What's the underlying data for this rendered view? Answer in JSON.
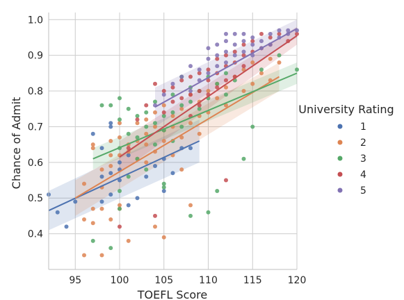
{
  "chart_data": {
    "type": "scatter",
    "xlabel": "TOEFL Score",
    "ylabel": "Chance of Admit",
    "xlim": [
      92,
      120
    ],
    "ylim": [
      0.3,
      1.02
    ],
    "xticks": [
      "95",
      "100",
      "105",
      "110",
      "115",
      "120"
    ],
    "yticks": [
      "0.4",
      "0.5",
      "0.6",
      "0.7",
      "0.8",
      "0.9",
      "1.0"
    ],
    "grid": true,
    "legend": {
      "title": "University Rating",
      "placement": "right"
    },
    "series": [
      {
        "name": "1",
        "color": "#4c72b0",
        "fit": {
          "x": [
            92,
            109
          ],
          "y": [
            0.465,
            0.66
          ],
          "band_lo": [
            0.41,
            0.6
          ],
          "band_hi": [
            0.52,
            0.72
          ]
        },
        "points": [
          [
            92,
            0.51
          ],
          [
            93,
            0.46
          ],
          [
            94,
            0.42
          ],
          [
            95,
            0.49
          ],
          [
            97,
            0.68
          ],
          [
            98,
            0.64
          ],
          [
            98,
            0.56
          ],
          [
            98,
            0.49
          ],
          [
            99,
            0.71
          ],
          [
            99,
            0.7
          ],
          [
            99,
            0.57
          ],
          [
            99,
            0.51
          ],
          [
            100,
            0.6
          ],
          [
            100,
            0.55
          ],
          [
            100,
            0.58
          ],
          [
            101,
            0.62
          ],
          [
            101,
            0.48
          ],
          [
            102,
            0.5
          ],
          [
            103,
            0.56
          ],
          [
            104,
            0.59
          ],
          [
            105,
            0.52
          ],
          [
            105,
            0.61
          ],
          [
            106,
            0.57
          ],
          [
            107,
            0.64
          ],
          [
            108,
            0.64
          ]
        ]
      },
      {
        "name": "2",
        "color": "#dd8452",
        "fit": {
          "x": [
            95,
            118
          ],
          "y": [
            0.5,
            0.84
          ],
          "band_lo": [
            0.45,
            0.8
          ],
          "band_hi": [
            0.55,
            0.88
          ]
        },
        "points": [
          [
            96,
            0.54
          ],
          [
            96,
            0.44
          ],
          [
            96,
            0.34
          ],
          [
            97,
            0.65
          ],
          [
            97,
            0.64
          ],
          [
            97,
            0.47
          ],
          [
            97,
            0.43
          ],
          [
            98,
            0.58
          ],
          [
            98,
            0.53
          ],
          [
            98,
            0.47
          ],
          [
            98,
            0.34
          ],
          [
            99,
            0.66
          ],
          [
            99,
            0.62
          ],
          [
            99,
            0.59
          ],
          [
            99,
            0.44
          ],
          [
            100,
            0.71
          ],
          [
            100,
            0.67
          ],
          [
            100,
            0.62
          ],
          [
            100,
            0.48
          ],
          [
            100,
            0.47
          ],
          [
            101,
            0.65
          ],
          [
            101,
            0.63
          ],
          [
            101,
            0.38
          ],
          [
            102,
            0.71
          ],
          [
            102,
            0.66
          ],
          [
            102,
            0.61
          ],
          [
            103,
            0.72
          ],
          [
            103,
            0.68
          ],
          [
            103,
            0.65
          ],
          [
            103,
            0.6
          ],
          [
            104,
            0.74
          ],
          [
            104,
            0.7
          ],
          [
            104,
            0.63
          ],
          [
            104,
            0.42
          ],
          [
            105,
            0.76
          ],
          [
            105,
            0.69
          ],
          [
            105,
            0.66
          ],
          [
            105,
            0.39
          ],
          [
            106,
            0.73
          ],
          [
            106,
            0.7
          ],
          [
            106,
            0.62
          ],
          [
            107,
            0.75
          ],
          [
            107,
            0.67
          ],
          [
            107,
            0.58
          ],
          [
            108,
            0.79
          ],
          [
            108,
            0.71
          ],
          [
            108,
            0.48
          ],
          [
            109,
            0.77
          ],
          [
            109,
            0.73
          ],
          [
            109,
            0.68
          ],
          [
            110,
            0.8
          ],
          [
            110,
            0.74
          ],
          [
            111,
            0.82
          ],
          [
            111,
            0.78
          ],
          [
            112,
            0.81
          ],
          [
            112,
            0.76
          ],
          [
            113,
            0.84
          ],
          [
            114,
            0.86
          ],
          [
            114,
            0.8
          ],
          [
            115,
            0.88
          ],
          [
            115,
            0.82
          ],
          [
            116,
            0.85
          ],
          [
            117,
            0.89
          ],
          [
            117,
            0.83
          ],
          [
            118,
            0.88
          ]
        ]
      },
      {
        "name": "3",
        "color": "#55a868",
        "fit": {
          "x": [
            97,
            120
          ],
          "y": [
            0.61,
            0.85
          ],
          "band_lo": [
            0.58,
            0.82
          ],
          "band_hi": [
            0.64,
            0.88
          ]
        },
        "points": [
          [
            97,
            0.38
          ],
          [
            98,
            0.76
          ],
          [
            99,
            0.76
          ],
          [
            99,
            0.36
          ],
          [
            100,
            0.78
          ],
          [
            100,
            0.72
          ],
          [
            100,
            0.64
          ],
          [
            100,
            0.52
          ],
          [
            100,
            0.47
          ],
          [
            101,
            0.75
          ],
          [
            101,
            0.68
          ],
          [
            101,
            0.56
          ],
          [
            102,
            0.73
          ],
          [
            102,
            0.67
          ],
          [
            102,
            0.61
          ],
          [
            103,
            0.74
          ],
          [
            103,
            0.7
          ],
          [
            103,
            0.58
          ],
          [
            104,
            0.77
          ],
          [
            104,
            0.71
          ],
          [
            104,
            0.65
          ],
          [
            105,
            0.73
          ],
          [
            105,
            0.69
          ],
          [
            105,
            0.54
          ],
          [
            105,
            0.53
          ],
          [
            106,
            0.79
          ],
          [
            106,
            0.74
          ],
          [
            106,
            0.66
          ],
          [
            107,
            0.84
          ],
          [
            107,
            0.76
          ],
          [
            107,
            0.7
          ],
          [
            108,
            0.81
          ],
          [
            108,
            0.77
          ],
          [
            108,
            0.45
          ],
          [
            109,
            0.8
          ],
          [
            109,
            0.75
          ],
          [
            110,
            0.84
          ],
          [
            110,
            0.78
          ],
          [
            110,
            0.46
          ],
          [
            111,
            0.82
          ],
          [
            111,
            0.52
          ],
          [
            112,
            0.85
          ],
          [
            112,
            0.79
          ],
          [
            113,
            0.83
          ],
          [
            114,
            0.61
          ],
          [
            115,
            0.7
          ],
          [
            116,
            0.86
          ],
          [
            118,
            0.9
          ],
          [
            120,
            0.86
          ]
        ]
      },
      {
        "name": "4",
        "color": "#c44e52",
        "fit": {
          "x": [
            100,
            120
          ],
          "y": [
            0.615,
            0.955
          ],
          "band_lo": [
            0.57,
            0.93
          ],
          "band_hi": [
            0.66,
            0.98
          ]
        },
        "points": [
          [
            100,
            0.42
          ],
          [
            101,
            0.64
          ],
          [
            102,
            0.72
          ],
          [
            103,
            0.76
          ],
          [
            104,
            0.82
          ],
          [
            104,
            0.45
          ],
          [
            105,
            0.8
          ],
          [
            105,
            0.74
          ],
          [
            106,
            0.77
          ],
          [
            106,
            0.81
          ],
          [
            107,
            0.83
          ],
          [
            107,
            0.78
          ],
          [
            108,
            0.84
          ],
          [
            108,
            0.79
          ],
          [
            108,
            0.73
          ],
          [
            109,
            0.85
          ],
          [
            109,
            0.8
          ],
          [
            109,
            0.76
          ],
          [
            110,
            0.86
          ],
          [
            110,
            0.83
          ],
          [
            110,
            0.79
          ],
          [
            111,
            0.89
          ],
          [
            111,
            0.85
          ],
          [
            111,
            0.81
          ],
          [
            112,
            0.9
          ],
          [
            112,
            0.87
          ],
          [
            112,
            0.83
          ],
          [
            112,
            0.55
          ],
          [
            113,
            0.91
          ],
          [
            113,
            0.88
          ],
          [
            113,
            0.84
          ],
          [
            114,
            0.93
          ],
          [
            114,
            0.9
          ],
          [
            114,
            0.87
          ],
          [
            115,
            0.94
          ],
          [
            115,
            0.91
          ],
          [
            116,
            0.96
          ],
          [
            116,
            0.92
          ],
          [
            117,
            0.95
          ],
          [
            117,
            0.93
          ],
          [
            118,
            0.96
          ],
          [
            119,
            0.94
          ],
          [
            120,
            0.96
          ]
        ]
      },
      {
        "name": "5",
        "color": "#8172b3",
        "fit": {
          "x": [
            104,
            120
          ],
          "y": [
            0.755,
            0.975
          ],
          "band_lo": [
            0.7,
            0.95
          ],
          "band_hi": [
            0.81,
            1.0
          ]
        },
        "points": [
          [
            104,
            0.76
          ],
          [
            105,
            0.79
          ],
          [
            106,
            0.82
          ],
          [
            107,
            0.84
          ],
          [
            108,
            0.87
          ],
          [
            108,
            0.8
          ],
          [
            109,
            0.86
          ],
          [
            109,
            0.83
          ],
          [
            110,
            0.92
          ],
          [
            110,
            0.89
          ],
          [
            110,
            0.85
          ],
          [
            111,
            0.93
          ],
          [
            111,
            0.9
          ],
          [
            111,
            0.87
          ],
          [
            112,
            0.96
          ],
          [
            112,
            0.94
          ],
          [
            112,
            0.91
          ],
          [
            112,
            0.88
          ],
          [
            113,
            0.96
          ],
          [
            113,
            0.93
          ],
          [
            113,
            0.9
          ],
          [
            114,
            0.96
          ],
          [
            114,
            0.94
          ],
          [
            114,
            0.91
          ],
          [
            115,
            0.95
          ],
          [
            115,
            0.93
          ],
          [
            115,
            0.9
          ],
          [
            116,
            0.94
          ],
          [
            116,
            0.92
          ],
          [
            117,
            0.96
          ],
          [
            117,
            0.93
          ],
          [
            118,
            0.97
          ],
          [
            118,
            0.95
          ],
          [
            119,
            0.97
          ],
          [
            119,
            0.96
          ],
          [
            120,
            0.97
          ]
        ]
      }
    ]
  }
}
